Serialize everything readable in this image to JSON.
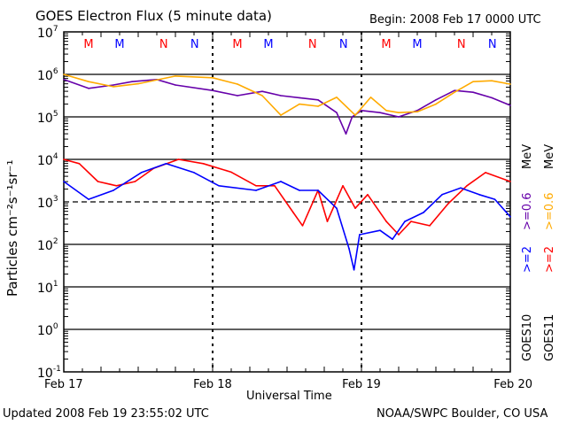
{
  "chart_data": {
    "type": "line",
    "title": "GOES Electron Flux (5 minute data)",
    "begin_label": "Begin: 2008 Feb 17 0000 UTC",
    "xlabel": "Universal Time",
    "ylabel": "Particles cm⁻²s⁻¹sr⁻¹",
    "x_unit": "hours since 2008 Feb 17 0000 UTC",
    "xlim": [
      0,
      72
    ],
    "ylim_log10": [
      -1,
      7
    ],
    "x_ticks": [
      {
        "h": 0,
        "label": "Feb 17"
      },
      {
        "h": 24,
        "label": "Feb 18"
      },
      {
        "h": 48,
        "label": "Feb 19"
      },
      {
        "h": 72,
        "label": "Feb 20"
      }
    ],
    "y_ticks": [
      {
        "exp": 7,
        "base": "10",
        "sup": "7"
      },
      {
        "exp": 6,
        "base": "10",
        "sup": "6"
      },
      {
        "exp": 5,
        "base": "10",
        "sup": "5"
      },
      {
        "exp": 4,
        "base": "10",
        "sup": "4"
      },
      {
        "exp": 3,
        "base": "10",
        "sup": "3"
      },
      {
        "exp": 2,
        "base": "10",
        "sup": "2"
      },
      {
        "exp": 1,
        "base": "10",
        "sup": "1"
      },
      {
        "exp": 0,
        "base": "10",
        "sup": "0"
      },
      {
        "exp": -1,
        "base": "10",
        "sup": "-1"
      }
    ],
    "threshold_log10": 3,
    "markers": [
      {
        "h": 4,
        "label": "M",
        "color": "#ff0000"
      },
      {
        "h": 9,
        "label": "M",
        "color": "#0000ff"
      },
      {
        "h": 16.1,
        "label": "N",
        "color": "#ff0000"
      },
      {
        "h": 21.1,
        "label": "N",
        "color": "#0000ff"
      },
      {
        "h": 28,
        "label": "M",
        "color": "#ff0000"
      },
      {
        "h": 33,
        "label": "M",
        "color": "#0000ff"
      },
      {
        "h": 40.1,
        "label": "N",
        "color": "#ff0000"
      },
      {
        "h": 45.1,
        "label": "N",
        "color": "#0000ff"
      },
      {
        "h": 52,
        "label": "M",
        "color": "#ff0000"
      },
      {
        "h": 57,
        "label": "M",
        "color": "#0000ff"
      },
      {
        "h": 64.1,
        "label": "N",
        "color": "#ff0000"
      },
      {
        "h": 69.1,
        "label": "N",
        "color": "#0000ff"
      }
    ],
    "series": [
      {
        "name": "GOES10 >=0.6 MeV",
        "color": "#6600aa",
        "h": [
          0,
          4,
          8,
          11,
          15,
          18,
          24,
          28,
          32,
          35,
          38,
          41,
          44,
          45.5,
          46.5,
          48,
          51,
          54,
          57,
          60,
          63,
          66,
          69,
          72
        ],
        "log10": [
          5.88,
          5.67,
          5.75,
          5.83,
          5.88,
          5.75,
          5.62,
          5.5,
          5.6,
          5.5,
          5.45,
          5.4,
          5.1,
          4.6,
          5.0,
          5.15,
          5.1,
          5.0,
          5.15,
          5.4,
          5.62,
          5.58,
          5.45,
          5.27
        ]
      },
      {
        "name": "GOES11 >=0.6 MeV",
        "color": "#ffaa00",
        "h": [
          0,
          4,
          8,
          12,
          18,
          24,
          28,
          32,
          35,
          38,
          41,
          44,
          47,
          49.5,
          52,
          54,
          57,
          60,
          63,
          66,
          69,
          72
        ],
        "log10": [
          6.0,
          5.83,
          5.71,
          5.78,
          5.96,
          5.92,
          5.77,
          5.5,
          5.04,
          5.3,
          5.25,
          5.46,
          5.04,
          5.46,
          5.15,
          5.1,
          5.12,
          5.3,
          5.58,
          5.83,
          5.85,
          5.77
        ]
      },
      {
        "name": "GOES11 >=2 MeV",
        "color": "#ff0000",
        "h": [
          0,
          2.5,
          5.5,
          8.5,
          11.5,
          14.5,
          18.5,
          22.5,
          27,
          31,
          34,
          37,
          38.5,
          41,
          42.5,
          45,
          47,
          49,
          52,
          54,
          56,
          59,
          62,
          65,
          68,
          72
        ],
        "log10": [
          4.0,
          3.9,
          3.48,
          3.38,
          3.48,
          3.79,
          4.0,
          3.9,
          3.7,
          3.38,
          3.38,
          2.75,
          2.44,
          3.27,
          2.54,
          3.38,
          2.85,
          3.17,
          2.54,
          2.23,
          2.54,
          2.44,
          2.96,
          3.38,
          3.69,
          3.48
        ]
      },
      {
        "name": "GOES10 >=2 MeV",
        "color": "#0000ff",
        "h": [
          0,
          4,
          8,
          12.5,
          16.5,
          21,
          25,
          31,
          35,
          38,
          41,
          44,
          46,
          46.8,
          47.7,
          51,
          53,
          55,
          58,
          61,
          64,
          67,
          69.5,
          72
        ],
        "log10": [
          3.48,
          3.06,
          3.27,
          3.69,
          3.9,
          3.69,
          3.38,
          3.27,
          3.48,
          3.27,
          3.27,
          2.85,
          1.9,
          1.4,
          2.23,
          2.33,
          2.12,
          2.54,
          2.75,
          3.17,
          3.33,
          3.17,
          3.06,
          2.65
        ]
      }
    ],
    "side_labels": {
      "goes10": "GOES10",
      "goes11": "GOES11",
      "ge2": ">=2",
      "ge06": ">=0.6",
      "mev": "MeV"
    }
  },
  "footer": {
    "updated": "Updated 2008 Feb 19 23:55:02 UTC",
    "credit": "NOAA/SWPC Boulder, CO USA"
  }
}
